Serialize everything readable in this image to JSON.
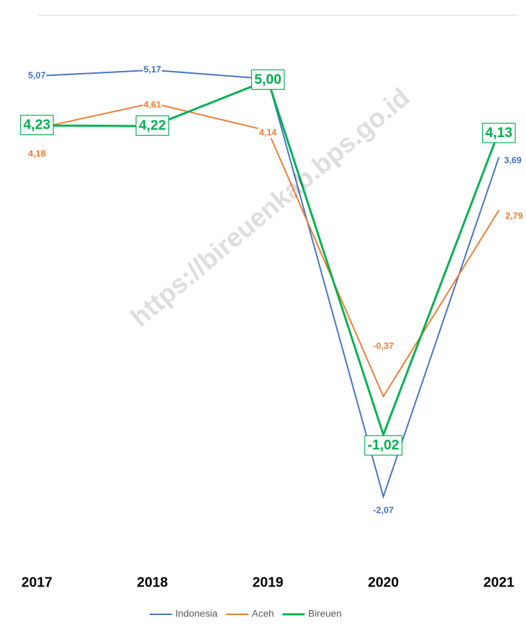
{
  "chart_data": {
    "type": "line",
    "categories": [
      "2017",
      "2018",
      "2019",
      "2020",
      "2021"
    ],
    "series": [
      {
        "name": "Indonesia",
        "color": "#4472c4",
        "values": [
          5.07,
          5.17,
          5.02,
          -2.07,
          3.69
        ],
        "value_labels": [
          "5,07",
          "5,17",
          null,
          "-2,07",
          "3,69"
        ]
      },
      {
        "name": "Aceh",
        "color": "#ed7d31",
        "values": [
          4.18,
          4.61,
          4.14,
          -0.37,
          2.79
        ],
        "value_labels": [
          "4,18",
          "4,61",
          "4,14",
          "-0,37",
          "2,79"
        ]
      },
      {
        "name": "Bireuen",
        "color": "#00b050",
        "values": [
          4.23,
          4.22,
          5.0,
          -1.02,
          4.13
        ],
        "value_labels": [
          "4,23",
          "4,22",
          "5,00",
          "-1,02",
          "4,13"
        ]
      }
    ],
    "ylim": [
      -3.3,
      6.1
    ],
    "legend": "bottom",
    "watermark": "https://bireuenkab.bps.go.id"
  }
}
